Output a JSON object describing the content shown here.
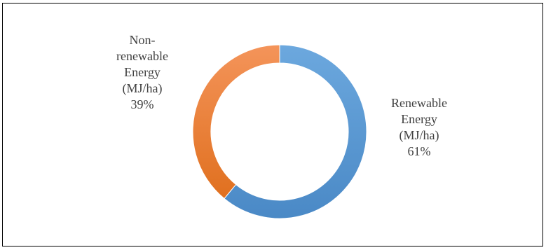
{
  "chart_data": {
    "type": "pie",
    "variant": "doughnut",
    "categories": [
      "Renewable Energy (MJ/ha)",
      "Non-renewable Energy (MJ/ha)"
    ],
    "values": [
      61,
      39
    ],
    "unit": "%",
    "title": "",
    "legend": "none",
    "start_angle": "top",
    "direction": "clockwise",
    "colors": [
      "#5B9BD5",
      "#ED7D31"
    ],
    "data_labels": [
      {
        "lines": [
          "Renewable",
          "Energy",
          "(MJ/ha)",
          "61%"
        ]
      },
      {
        "lines": [
          "Non-",
          "renewable",
          "Energy",
          "(MJ/ha)",
          "39%"
        ]
      }
    ]
  }
}
